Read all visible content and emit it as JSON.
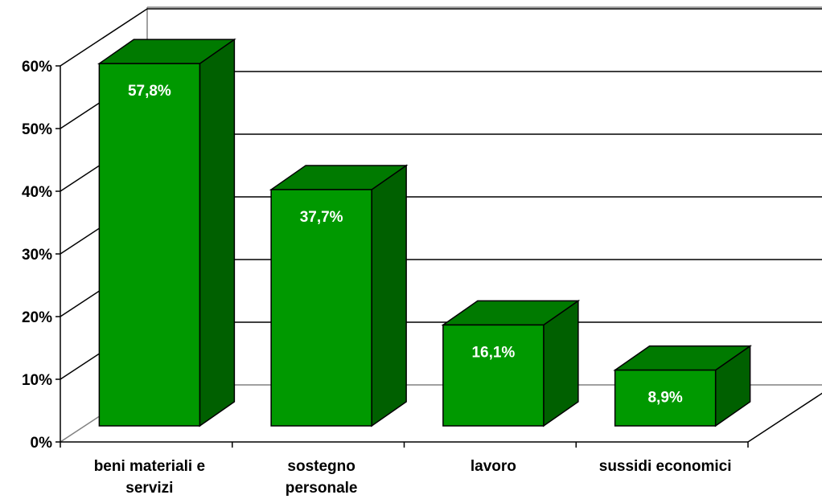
{
  "chart_data": {
    "type": "bar",
    "style": "3d",
    "categories": [
      [
        "beni materiali e",
        "servizi"
      ],
      [
        "sostegno",
        "personale"
      ],
      [
        "lavoro"
      ],
      [
        "sussidi economici"
      ]
    ],
    "values": [
      57.8,
      37.7,
      16.1,
      8.9
    ],
    "data_labels": [
      "57,8%",
      "37,7%",
      "16,1%",
      "8,9%"
    ],
    "y_ticks": [
      "0%",
      "10%",
      "20%",
      "30%",
      "40%",
      "50%",
      "60%"
    ],
    "ylim": [
      0,
      60
    ],
    "grid": true,
    "legend": "none",
    "colors": {
      "front": "#009900",
      "top": "#007a00",
      "side": "#006000",
      "outline": "#000000",
      "gridline": "#000000",
      "label": "#ffffff"
    }
  }
}
